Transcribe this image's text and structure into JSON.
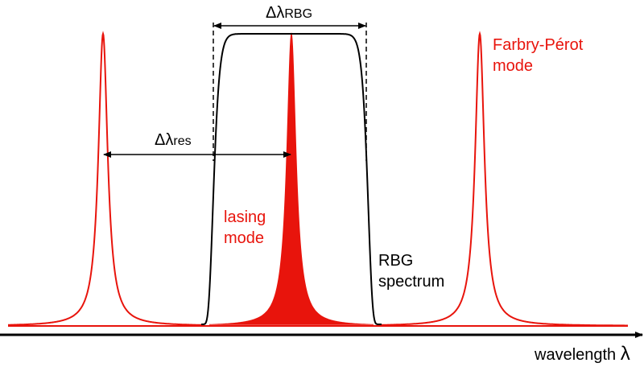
{
  "labels": {
    "delta_rbg": {
      "symbol": "Δλ",
      "subscript": "RBG"
    },
    "delta_res": {
      "symbol": "Δλ",
      "subscript": "res"
    },
    "fp_mode": [
      "Farbry-Pérot",
      "mode"
    ],
    "lasing_mode": [
      "lasing",
      "mode"
    ],
    "rbg_spectrum": [
      "RBG",
      "spectrum"
    ],
    "axis": {
      "text": "wavelength",
      "symbol": "λ"
    }
  }
}
